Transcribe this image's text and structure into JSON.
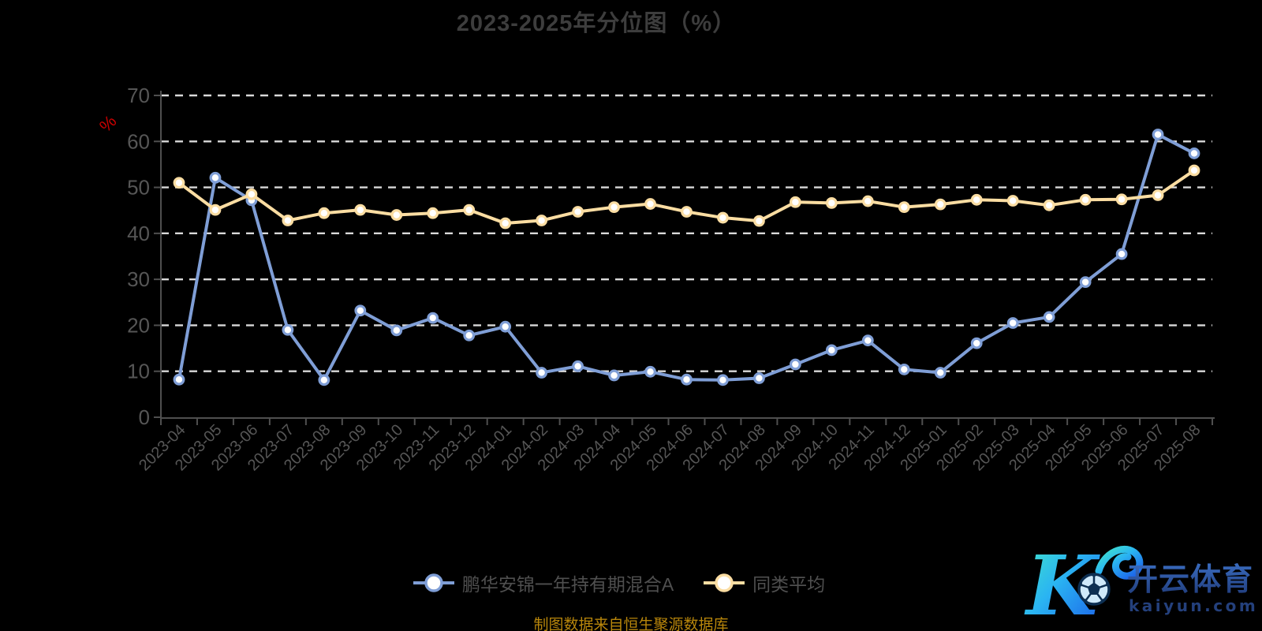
{
  "page": {
    "background": "#000000"
  },
  "title": {
    "text": "2023-2025年分位图（%）",
    "color": "#3d3d3d"
  },
  "y_axis": {
    "unit": "%",
    "unit_color": "#cc0000",
    "yticks": [
      0,
      10,
      20,
      30,
      40,
      50,
      60,
      70
    ]
  },
  "legend": {
    "items": [
      {
        "label": "鹏华安锦一年持有期混合A",
        "color": "#7f9ed6"
      },
      {
        "label": "同类平均",
        "color": "#fbdda2"
      }
    ],
    "text_color": "#4f4f4f"
  },
  "footer": {
    "text": "制图数据来自恒生聚源数据库",
    "color": "#b8860b"
  },
  "logo": {
    "brand": "开云体育",
    "domain": "kaiyun.com",
    "accent_from": "#43e8c8",
    "accent_mid": "#2ab4f2",
    "accent_to": "#1b5ce8",
    "text_color": "#24407c"
  },
  "chart_data": {
    "type": "line",
    "title": "2023-2025年分位图（%）",
    "xlabel": "",
    "ylabel": "%",
    "ylim": [
      0,
      70
    ],
    "ytick_interval": 10,
    "grid": "horizontal-dashed",
    "grid_color": "#d9d9d9",
    "axis_color": "#4f4f4f",
    "tick_label_color": "#565656",
    "x_label_rotation": 45,
    "legend_position": "bottom",
    "categories": [
      "2023-04",
      "2023-05",
      "2023-06",
      "2023-07",
      "2023-08",
      "2023-09",
      "2023-10",
      "2023-11",
      "2023-12",
      "2024-01",
      "2024-02",
      "2024-03",
      "2024-04",
      "2024-05",
      "2024-06",
      "2024-07",
      "2024-08",
      "2024-09",
      "2024-10",
      "2024-11",
      "2024-12",
      "2025-01",
      "2025-02",
      "2025-03",
      "2025-04",
      "2025-05",
      "2025-06",
      "2025-07",
      "2025-08"
    ],
    "series": [
      {
        "name": "鹏华安锦一年持有期混合A",
        "color": "#7f9ed6",
        "values": [
          8.2,
          52.1,
          47.2,
          19.0,
          8.1,
          23.2,
          18.9,
          21.6,
          17.8,
          19.7,
          9.7,
          11.1,
          9.1,
          9.9,
          8.2,
          8.1,
          8.5,
          11.5,
          14.6,
          16.7,
          10.4,
          9.7,
          16.1,
          20.5,
          21.8,
          29.4,
          35.5,
          61.5,
          57.4
        ]
      },
      {
        "name": "同类平均",
        "color": "#fbdda2",
        "values": [
          51.0,
          45.1,
          48.5,
          42.8,
          44.4,
          45.1,
          44.0,
          44.4,
          45.1,
          42.2,
          42.8,
          44.7,
          45.7,
          46.4,
          44.7,
          43.4,
          42.7,
          46.8,
          46.6,
          47.0,
          45.7,
          46.3,
          47.3,
          47.1,
          46.1,
          47.3,
          47.4,
          48.3,
          53.7
        ]
      }
    ]
  }
}
